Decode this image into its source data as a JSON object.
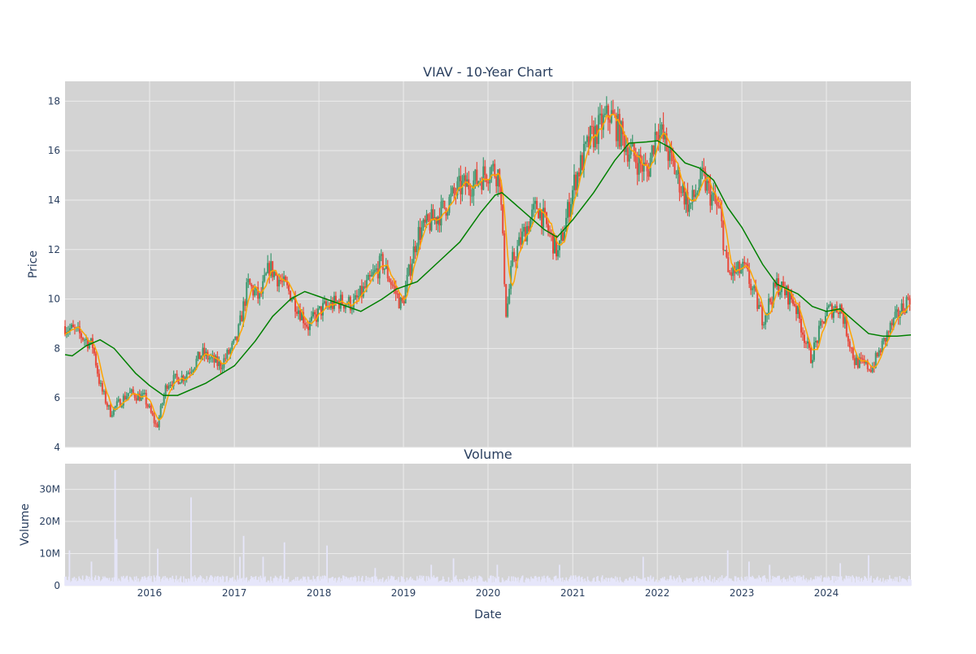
{
  "chart_data": [
    {
      "type": "candlestick",
      "title": "VIAV - 10-Year Chart",
      "ylabel": "Price",
      "xlabel": "",
      "xlim": [
        "2015-01-01",
        "2024-12-31"
      ],
      "ylim": [
        4,
        18.8
      ],
      "yticks": [
        4,
        6,
        8,
        10,
        12,
        14,
        16,
        18
      ],
      "grid": true,
      "colors": {
        "background": "#d3d3d3",
        "grid": "#ececec",
        "increasing": "#3d9970",
        "decreasing": "#e8473a",
        "ma_short": "#ffa500",
        "ma_long": "#008000"
      },
      "price_path": [
        [
          "2015-01-01",
          8.9
        ],
        [
          "2015-03-01",
          8.6
        ],
        [
          "2015-05-01",
          8.1
        ],
        [
          "2015-06-01",
          6.5
        ],
        [
          "2015-07-15",
          5.4
        ],
        [
          "2015-10-01",
          6.2
        ],
        [
          "2015-12-10",
          6.0
        ],
        [
          "2016-02-01",
          4.8
        ],
        [
          "2016-03-15",
          6.6
        ],
        [
          "2016-06-01",
          6.9
        ],
        [
          "2016-08-15",
          7.8
        ],
        [
          "2016-11-01",
          7.3
        ],
        [
          "2017-01-10",
          8.3
        ],
        [
          "2017-03-01",
          10.6
        ],
        [
          "2017-04-20",
          10.0
        ],
        [
          "2017-06-01",
          11.3
        ],
        [
          "2017-09-01",
          10.2
        ],
        [
          "2017-11-15",
          8.9
        ],
        [
          "2018-01-15",
          9.6
        ],
        [
          "2018-04-01",
          9.9
        ],
        [
          "2018-06-01",
          9.8
        ],
        [
          "2018-08-01",
          10.6
        ],
        [
          "2018-10-01",
          11.5
        ],
        [
          "2018-12-25",
          9.7
        ],
        [
          "2019-03-01",
          12.6
        ],
        [
          "2019-06-01",
          13.4
        ],
        [
          "2019-09-01",
          14.5
        ],
        [
          "2019-11-15",
          14.8
        ],
        [
          "2020-01-15",
          15.3
        ],
        [
          "2020-02-20",
          15.0
        ],
        [
          "2020-03-20",
          9.3
        ],
        [
          "2020-04-15",
          11.5
        ],
        [
          "2020-06-01",
          12.6
        ],
        [
          "2020-08-01",
          13.8
        ],
        [
          "2020-10-30",
          11.8
        ],
        [
          "2021-01-10",
          14.8
        ],
        [
          "2021-03-15",
          16.4
        ],
        [
          "2021-06-10",
          17.5
        ],
        [
          "2021-09-01",
          16.0
        ],
        [
          "2021-11-20",
          15.1
        ],
        [
          "2022-01-01",
          17.1
        ],
        [
          "2022-03-01",
          15.6
        ],
        [
          "2022-05-20",
          13.7
        ],
        [
          "2022-07-15",
          14.9
        ],
        [
          "2022-09-30",
          13.4
        ],
        [
          "2022-11-01",
          11.0
        ],
        [
          "2023-01-15",
          11.2
        ],
        [
          "2023-04-01",
          9.2
        ],
        [
          "2023-06-01",
          10.6
        ],
        [
          "2023-08-15",
          9.9
        ],
        [
          "2023-10-25",
          7.6
        ],
        [
          "2024-01-01",
          9.5
        ],
        [
          "2024-03-01",
          9.7
        ],
        [
          "2024-05-01",
          7.5
        ],
        [
          "2024-07-15",
          7.2
        ],
        [
          "2024-10-01",
          8.8
        ],
        [
          "2024-12-31",
          10.2
        ]
      ],
      "moving_average_long": [
        [
          "2015-01-01",
          7.75
        ],
        [
          "2015-02-01",
          7.7
        ],
        [
          "2015-04-01",
          8.1
        ],
        [
          "2015-06-01",
          8.35
        ],
        [
          "2015-08-01",
          8.0
        ],
        [
          "2015-11-01",
          7.0
        ],
        [
          "2016-01-01",
          6.5
        ],
        [
          "2016-03-01",
          6.1
        ],
        [
          "2016-05-01",
          6.1
        ],
        [
          "2016-09-01",
          6.6
        ],
        [
          "2017-01-01",
          7.3
        ],
        [
          "2017-04-01",
          8.3
        ],
        [
          "2017-06-15",
          9.3
        ],
        [
          "2017-09-01",
          10.0
        ],
        [
          "2017-11-01",
          10.3
        ],
        [
          "2018-01-01",
          10.1
        ],
        [
          "2018-04-01",
          9.8
        ],
        [
          "2018-07-01",
          9.5
        ],
        [
          "2018-10-01",
          10.0
        ],
        [
          "2018-12-01",
          10.4
        ],
        [
          "2019-03-01",
          10.7
        ],
        [
          "2019-06-01",
          11.5
        ],
        [
          "2019-09-01",
          12.3
        ],
        [
          "2019-12-01",
          13.5
        ],
        [
          "2020-02-01",
          14.2
        ],
        [
          "2020-03-01",
          14.3
        ],
        [
          "2020-05-01",
          13.8
        ],
        [
          "2020-07-01",
          13.3
        ],
        [
          "2020-09-01",
          12.8
        ],
        [
          "2020-10-25",
          12.5
        ],
        [
          "2021-01-01",
          13.2
        ],
        [
          "2021-04-01",
          14.3
        ],
        [
          "2021-07-01",
          15.6
        ],
        [
          "2021-09-01",
          16.3
        ],
        [
          "2021-11-15",
          16.35
        ],
        [
          "2022-01-01",
          16.4
        ],
        [
          "2022-03-01",
          16.1
        ],
        [
          "2022-05-01",
          15.5
        ],
        [
          "2022-07-01",
          15.3
        ],
        [
          "2022-09-01",
          14.8
        ],
        [
          "2022-11-01",
          13.7
        ],
        [
          "2023-01-01",
          12.9
        ],
        [
          "2023-04-01",
          11.4
        ],
        [
          "2023-06-01",
          10.6
        ],
        [
          "2023-09-01",
          10.2
        ],
        [
          "2023-11-01",
          9.7
        ],
        [
          "2024-01-01",
          9.5
        ],
        [
          "2024-03-01",
          9.6
        ],
        [
          "2024-05-01",
          9.1
        ],
        [
          "2024-07-01",
          8.6
        ],
        [
          "2024-09-01",
          8.5
        ],
        [
          "2024-11-01",
          8.5
        ],
        [
          "2024-12-31",
          8.55
        ]
      ]
    },
    {
      "type": "bar",
      "title": "Volume",
      "ylabel": "Volume",
      "xlabel": "Date",
      "xlim": [
        "2015-01-01",
        "2024-12-31"
      ],
      "ylim": [
        0,
        38000000
      ],
      "yticks": [
        0,
        10000000,
        20000000,
        30000000
      ],
      "ytick_labels": [
        "0",
        "10M",
        "20M",
        "30M"
      ],
      "xtick_labels": [
        "2016",
        "2017",
        "2018",
        "2019",
        "2020",
        "2021",
        "2022",
        "2023",
        "2024"
      ],
      "bar_color": "#e6e6fa",
      "typical_volume": 2600000,
      "spikes": [
        [
          "2015-01-20",
          11000000
        ],
        [
          "2015-04-25",
          7500000
        ],
        [
          "2015-08-05",
          36000000
        ],
        [
          "2015-08-12",
          14500000
        ],
        [
          "2016-02-05",
          11500000
        ],
        [
          "2016-06-28",
          27500000
        ],
        [
          "2017-01-25",
          9000000
        ],
        [
          "2017-02-10",
          15500000
        ],
        [
          "2017-05-05",
          9000000
        ],
        [
          "2017-08-05",
          13500000
        ],
        [
          "2018-02-05",
          12500000
        ],
        [
          "2018-09-01",
          5500000
        ],
        [
          "2019-05-01",
          6500000
        ],
        [
          "2019-08-05",
          8500000
        ],
        [
          "2020-02-10",
          6500000
        ],
        [
          "2020-11-05",
          6500000
        ],
        [
          "2021-11-01",
          9000000
        ],
        [
          "2022-11-01",
          11000000
        ],
        [
          "2023-02-01",
          7500000
        ],
        [
          "2023-05-01",
          6500000
        ],
        [
          "2024-03-01",
          7000000
        ],
        [
          "2024-07-01",
          9500000
        ]
      ]
    }
  ]
}
